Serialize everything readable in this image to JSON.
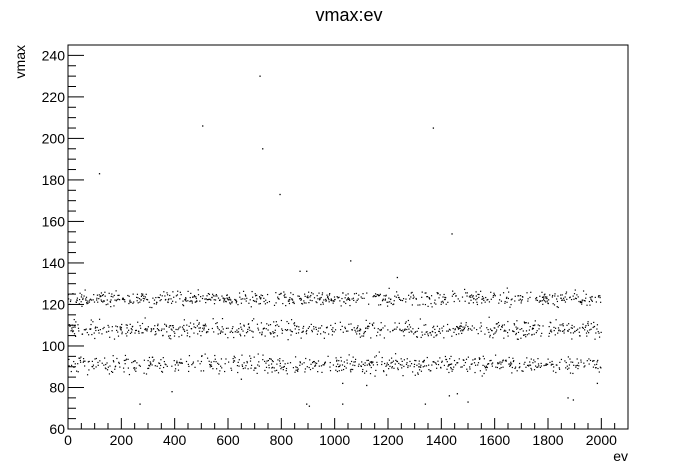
{
  "chart_data": {
    "type": "scatter",
    "title": "vmax:ev",
    "xlabel": "ev",
    "ylabel": "vmax",
    "xlim": [
      0,
      2100
    ],
    "ylim": [
      60,
      245
    ],
    "x_ticks": [
      0,
      200,
      400,
      600,
      800,
      1000,
      1200,
      1400,
      1600,
      1800,
      2000
    ],
    "y_ticks": [
      60,
      80,
      100,
      120,
      140,
      160,
      180,
      200,
      220,
      240
    ],
    "grid": false,
    "legend": "none",
    "marker_color": "#000000",
    "n_points": 2000,
    "bands": [
      {
        "center": 91,
        "spread": 3,
        "share": 0.32
      },
      {
        "center": 108,
        "spread": 3,
        "share": 0.34
      },
      {
        "center": 123,
        "spread": 2.5,
        "share": 0.34
      }
    ],
    "outliers": [
      {
        "x": 118,
        "y": 183
      },
      {
        "x": 505,
        "y": 206
      },
      {
        "x": 720,
        "y": 230
      },
      {
        "x": 730,
        "y": 195
      },
      {
        "x": 795,
        "y": 173
      },
      {
        "x": 1370,
        "y": 205
      },
      {
        "x": 1440,
        "y": 154
      },
      {
        "x": 1060,
        "y": 141
      },
      {
        "x": 870,
        "y": 136
      },
      {
        "x": 895,
        "y": 136
      },
      {
        "x": 1235,
        "y": 133
      },
      {
        "x": 1340,
        "y": 72
      },
      {
        "x": 1500,
        "y": 73
      },
      {
        "x": 895,
        "y": 72
      },
      {
        "x": 905,
        "y": 71
      },
      {
        "x": 1030,
        "y": 72
      },
      {
        "x": 270,
        "y": 72
      },
      {
        "x": 1875,
        "y": 75
      },
      {
        "x": 1895,
        "y": 74
      },
      {
        "x": 390,
        "y": 78
      },
      {
        "x": 1120,
        "y": 81
      },
      {
        "x": 1985,
        "y": 82
      },
      {
        "x": 1430,
        "y": 76
      },
      {
        "x": 1460,
        "y": 77
      },
      {
        "x": 650,
        "y": 84
      },
      {
        "x": 1030,
        "y": 82
      }
    ]
  }
}
